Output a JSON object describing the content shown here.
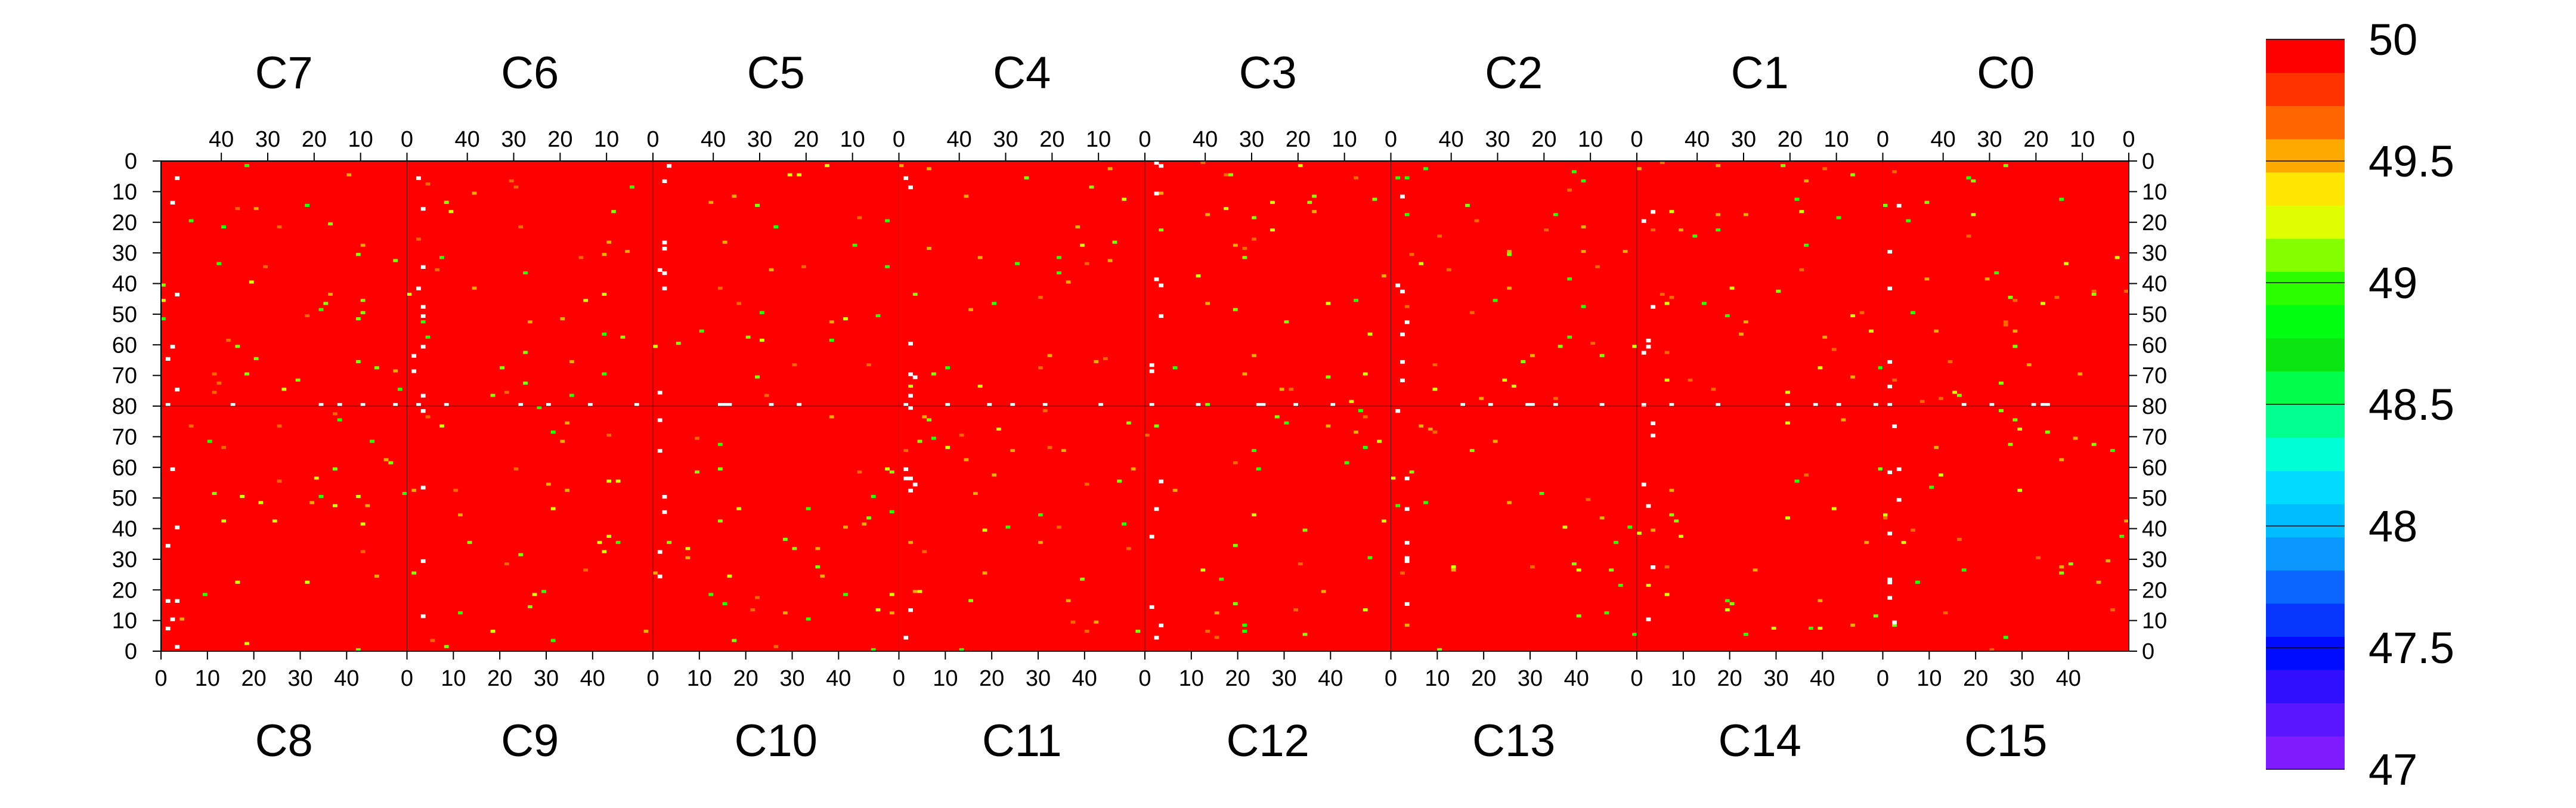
{
  "chart_data": {
    "type": "heatmap",
    "title": "",
    "xlabel": "",
    "ylabel": "",
    "top_chips": [
      "C7",
      "C6",
      "C5",
      "C4",
      "C3",
      "C2",
      "C1",
      "C0"
    ],
    "bottom_chips": [
      "C8",
      "C9",
      "C10",
      "C11",
      "C12",
      "C13",
      "C14",
      "C15"
    ],
    "columns_per_chip": 53,
    "rows_per_half": 80,
    "top_x_ticks": [
      40,
      30,
      20,
      10,
      0
    ],
    "bottom_x_ticks": [
      0,
      10,
      20,
      30,
      40
    ],
    "y_ticks_top_half": [
      0,
      10,
      20,
      30,
      40,
      50,
      60,
      70,
      80
    ],
    "y_ticks_bottom_half": [
      70,
      60,
      50,
      40,
      30,
      20,
      10,
      0
    ],
    "z_range": [
      47,
      50
    ],
    "z_levels": 20,
    "colorbar_ticks": [
      "47",
      "47.5",
      "48",
      "48.5",
      "49",
      "49.5",
      "50"
    ],
    "colorbar_colors": [
      "#7e1cff",
      "#5a16ff",
      "#3010ff",
      "#000cff",
      "#0636ff",
      "#0a66ff",
      "#0a98ff",
      "#00bdff",
      "#00dcff",
      "#00ffd6",
      "#00ff8c",
      "#00ff4a",
      "#0be612",
      "#00ff12",
      "#2cff00",
      "#84ff00",
      "#ddff00",
      "#ffe600",
      "#ffa800",
      "#ff6600",
      "#ff3300",
      "#ff0000"
    ],
    "background_value": 50,
    "background_color": "#ff0000",
    "missing_color": "#ffffff",
    "sparse_cells": {
      "description_values": "Majority of pixels at value 50; scattered pixels in the 49-49.8 range and some empty (no data) pixels, concentrated along chip edges and the central row",
      "low_value_examples": [
        49.6,
        49.4,
        49.2,
        49.0,
        49.8
      ]
    }
  }
}
